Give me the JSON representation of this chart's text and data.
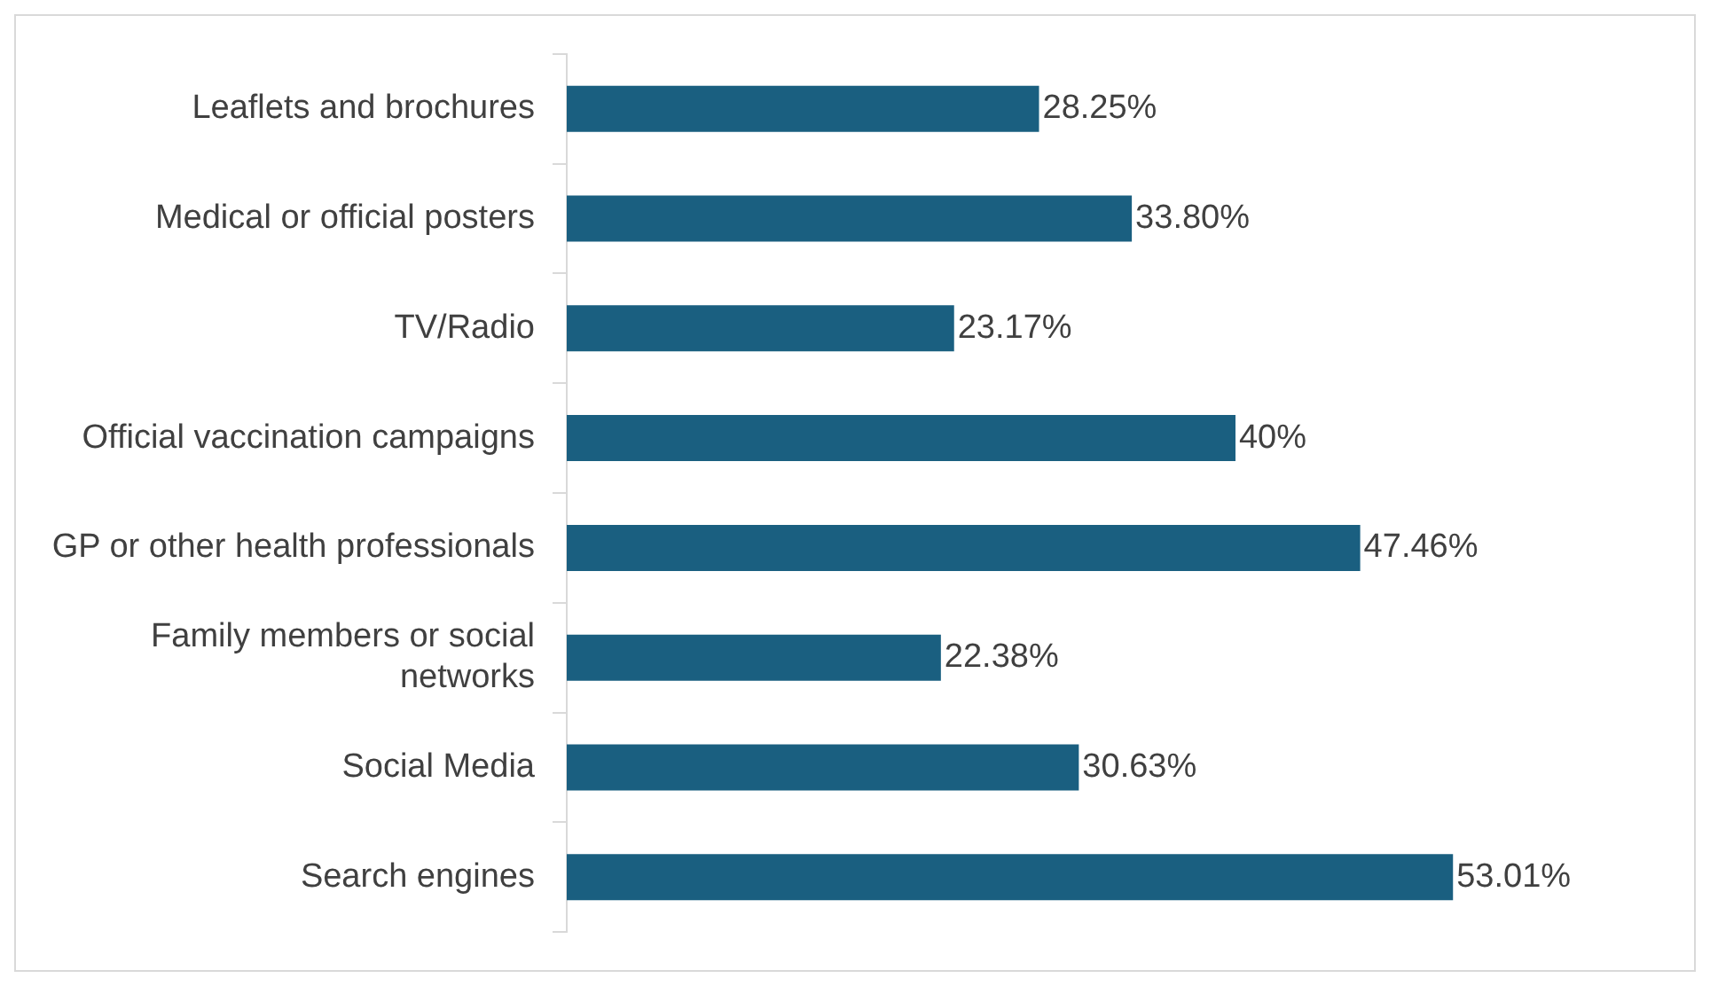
{
  "chart_data": {
    "type": "bar",
    "orientation": "horizontal",
    "categories": [
      "Leaflets and brochures",
      "Medical or official posters",
      "TV/Radio",
      "Official vaccination campaigns",
      "GP or other health professionals",
      "Family members or social networks",
      "Social Media",
      "Search engines"
    ],
    "values": [
      28.25,
      33.8,
      23.17,
      40,
      47.46,
      22.38,
      30.63,
      53.01
    ],
    "value_labels": [
      "28.25%",
      "33.80%",
      "23.17%",
      "40%",
      "47.46%",
      "22.38%",
      "30.63%",
      "53.01%"
    ],
    "color": "#1a5f80",
    "legend": false
  }
}
